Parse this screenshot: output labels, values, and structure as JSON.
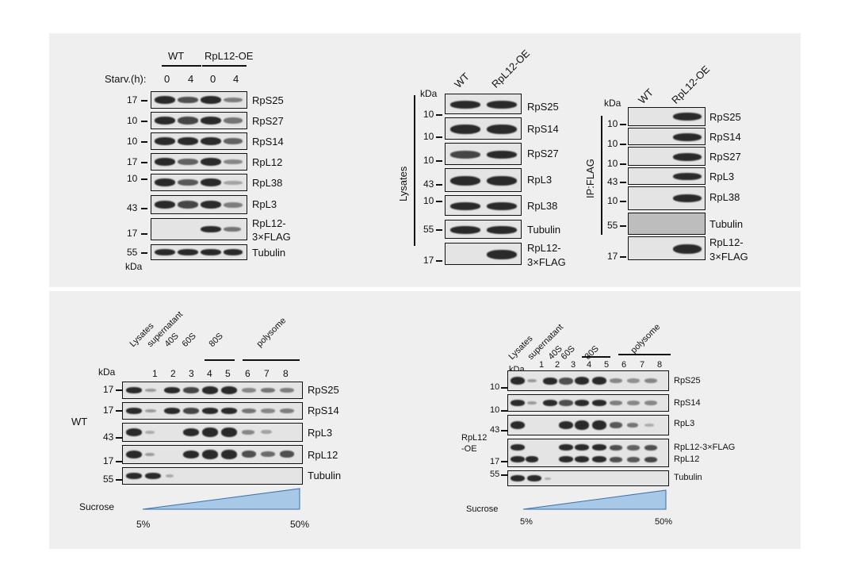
{
  "panelA": {
    "groups": [
      "WT",
      "RpL12-OE"
    ],
    "starv_label": "Starv.(h):",
    "times": [
      "0",
      "4",
      "0",
      "4"
    ],
    "rows": [
      {
        "mw": "17",
        "label": "RpS25"
      },
      {
        "mw": "10",
        "label": "RpS27"
      },
      {
        "mw": "10",
        "label": "RpS14"
      },
      {
        "mw": "17",
        "label": "RpL12"
      },
      {
        "mw": "10",
        "label": "RpL38"
      },
      {
        "mw": "43",
        "label": "RpL3"
      },
      {
        "mw": "17",
        "label": "RpL12-",
        "label2": "3×FLAG"
      },
      {
        "mw": "55",
        "label": "Tubulin"
      }
    ],
    "kda": "kDa"
  },
  "panelB": {
    "lysates_label": "Lysates",
    "ip_label": "IP:FLAG",
    "lanes": [
      "WT",
      "RpL12-OE"
    ],
    "kda": "kDa",
    "left_rows": [
      {
        "mw": "10",
        "label": "RpS25"
      },
      {
        "mw": "10",
        "label": "RpS14"
      },
      {
        "mw": "10",
        "label": "RpS27"
      },
      {
        "mw": "43",
        "label": "RpL3"
      },
      {
        "mw": "10",
        "label": "RpL38"
      },
      {
        "mw": "55",
        "label": "Tubulin"
      },
      {
        "mw": "17",
        "label": "RpL12-",
        "label2": "3×FLAG"
      }
    ],
    "right_rows": [
      {
        "mw": "10",
        "label": "RpS25"
      },
      {
        "mw": "10",
        "label": "RpS14"
      },
      {
        "mw": "10",
        "label": "RpS27"
      },
      {
        "mw": "43",
        "label": "RpL3"
      },
      {
        "mw": "10",
        "label": "RpL38"
      },
      {
        "mw": "55",
        "label": "Tubulin"
      },
      {
        "mw": "17",
        "label": "RpL12-",
        "label2": "3×FLAG"
      }
    ]
  },
  "panelC": {
    "sample": "WT",
    "kda": "kDa",
    "header": [
      "Lysates",
      "supernatant",
      "40S",
      "60S"
    ],
    "group_80s": "80S",
    "group_poly": "polysome",
    "lanes": [
      "1",
      "2",
      "3",
      "4",
      "5",
      "6",
      "7",
      "8"
    ],
    "rows": [
      {
        "mw": "17",
        "label": "RpS25"
      },
      {
        "mw": "17",
        "label": "RpS14"
      },
      {
        "mw": "43",
        "label": "RpL3"
      },
      {
        "mw": "17",
        "label": "RpL12"
      },
      {
        "mw": "55",
        "label": "Tubulin"
      }
    ],
    "sucrose": "Sucrose",
    "pct_low": "5%",
    "pct_high": "50%"
  },
  "panelD": {
    "sample": "RpL12",
    "sample2": "-OE",
    "kda": "kDa",
    "header": [
      "Lysates",
      "supernatant",
      "40S",
      "60S"
    ],
    "group_80s": "80S",
    "group_poly": "polysome",
    "lanes": [
      "1",
      "2",
      "3",
      "4",
      "5",
      "6",
      "7",
      "8"
    ],
    "rows": [
      {
        "mw": "10",
        "label": "RpS25"
      },
      {
        "mw": "10",
        "label": "RpS14"
      },
      {
        "mw": "43",
        "label": "RpL3"
      },
      {
        "mw": "17",
        "label": "RpL12-3×FLAG",
        "label2": "RpL12"
      },
      {
        "mw": "55",
        "label": "Tubulin"
      }
    ],
    "sucrose": "Sucrose",
    "pct_low": "5%",
    "pct_high": "50%"
  }
}
